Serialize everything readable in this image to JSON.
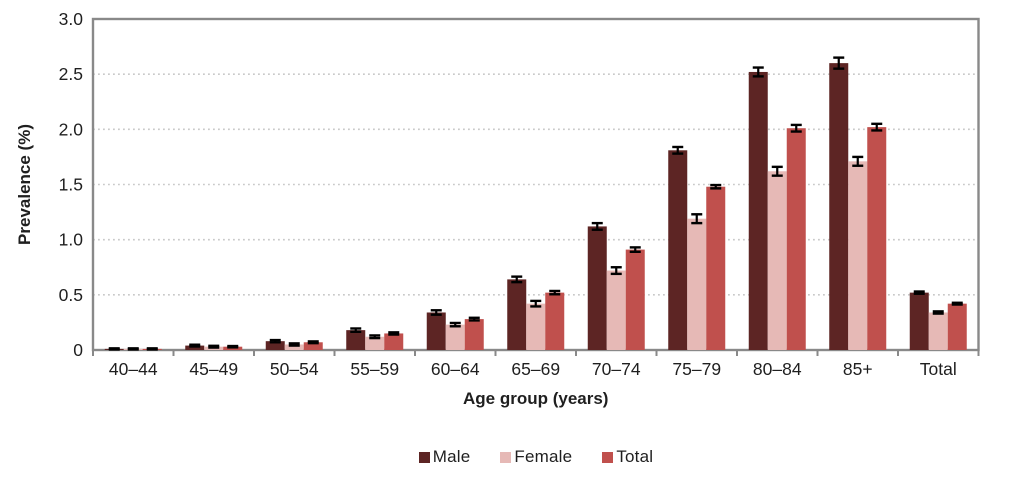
{
  "chart_data": {
    "type": "bar",
    "title": "",
    "xlabel": "Age group (years)",
    "ylabel": "Prevalence (%)",
    "ylim": [
      0,
      3.0
    ],
    "ytick_values": [
      0,
      0.5,
      1.0,
      1.5,
      2.0,
      2.5,
      3.0
    ],
    "ytick_labels": [
      "0",
      "0.5",
      "1.0",
      "1.5",
      "2.0",
      "2.5",
      "3.0"
    ],
    "grid": "dotted horizontal gridlines at each 0.5",
    "legend_position": "bottom center",
    "error_bars": true,
    "categories": [
      "40–44",
      "45–49",
      "50–54",
      "55–59",
      "60–64",
      "65–69",
      "70–74",
      "75–79",
      "80–84",
      "85+",
      "Total"
    ],
    "series": [
      {
        "name": "Male",
        "color": "#5d2524",
        "values": [
          0.01,
          0.04,
          0.08,
          0.18,
          0.34,
          0.64,
          1.12,
          1.81,
          2.52,
          2.6,
          0.52
        ],
        "errors": [
          0.005,
          0.008,
          0.01,
          0.015,
          0.02,
          0.025,
          0.03,
          0.03,
          0.04,
          0.05,
          0.01
        ]
      },
      {
        "name": "Female",
        "color": "#e6b9b6",
        "values": [
          0.01,
          0.03,
          0.05,
          0.12,
          0.23,
          0.42,
          0.72,
          1.19,
          1.62,
          1.71,
          0.34
        ],
        "errors": [
          0.005,
          0.008,
          0.01,
          0.012,
          0.015,
          0.025,
          0.03,
          0.04,
          0.04,
          0.04,
          0.01
        ]
      },
      {
        "name": "Total",
        "color": "#c0504d",
        "values": [
          0.01,
          0.03,
          0.07,
          0.15,
          0.28,
          0.52,
          0.91,
          1.48,
          2.01,
          2.02,
          0.42
        ],
        "errors": [
          0.005,
          0.006,
          0.008,
          0.01,
          0.012,
          0.015,
          0.02,
          0.015,
          0.03,
          0.03,
          0.008
        ]
      }
    ]
  },
  "colors": {
    "axis_border": "#898989",
    "gridline": "#c9c9c9",
    "error_bar": "#000000",
    "text": "#1f1f1f",
    "background": "#ffffff"
  }
}
